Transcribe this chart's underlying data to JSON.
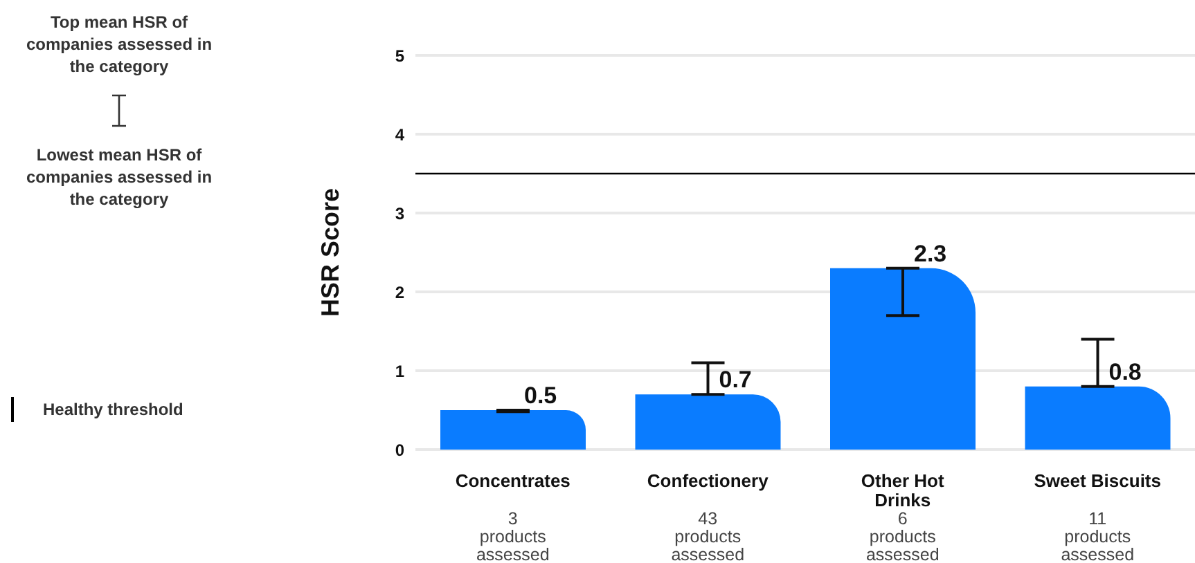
{
  "chart_data": {
    "type": "bar",
    "ylabel": "HSR Score",
    "categories": [
      "Concentrates",
      "Confectionery",
      "Other Hot Drinks",
      "Sweet Biscuits"
    ],
    "values": [
      0.5,
      0.7,
      2.3,
      0.8
    ],
    "errors": [
      [
        0.48,
        0.5
      ],
      [
        0.7,
        1.1
      ],
      [
        1.7,
        2.3
      ],
      [
        0.8,
        1.4
      ]
    ],
    "color": "#0a7cff",
    "ylim": [
      0,
      5
    ],
    "yticks": [
      0,
      1,
      2,
      3,
      4,
      5
    ],
    "grid": "y",
    "data_labels": true,
    "ref_lines": [
      {
        "axis": "y",
        "value": 3.5,
        "label": "Healthy threshold",
        "color": "#000000"
      }
    ],
    "annotations": [
      "Top mean HSR of companies assessed in the category",
      "Lowest mean HSR of companies assessed in the category",
      "3 products assessed",
      "43 products assessed",
      "6 products assessed",
      "11 products assessed"
    ]
  }
}
